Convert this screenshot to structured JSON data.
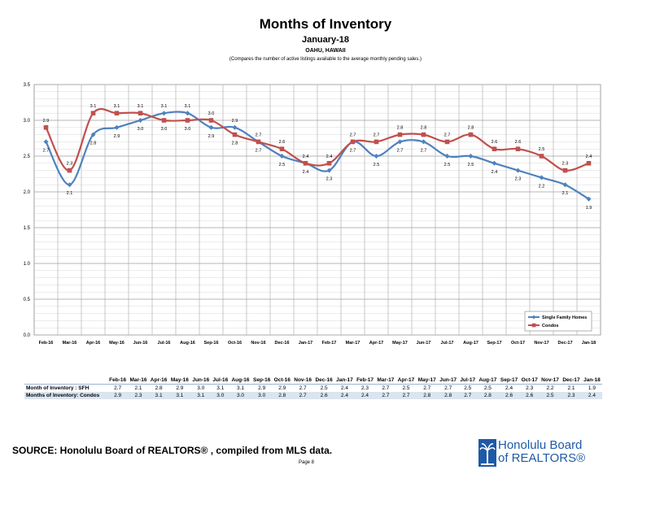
{
  "header": {
    "title": "Months of Inventory",
    "subtitle": "January-18",
    "location": "OAHU, HAWAII",
    "note": "(Compares the number of active listings available to the average monthly pending sales.)"
  },
  "colors": {
    "sfh": "#4f81bd",
    "condos": "#c0504d",
    "grid": "#a6a6a6"
  },
  "chart_data": {
    "type": "line",
    "categories": [
      "Feb-16",
      "Mar-16",
      "Apr-16",
      "May-16",
      "Jun-16",
      "Jul-16",
      "Aug-16",
      "Sep-16",
      "Oct-16",
      "Nov-16",
      "Dec-16",
      "Jan-17",
      "Feb-17",
      "Mar-17",
      "Apr-17",
      "May-17",
      "Jun-17",
      "Jul-17",
      "Aug-17",
      "Sep-17",
      "Oct-17",
      "Nov-17",
      "Dec-17",
      "Jan-18"
    ],
    "ylim": [
      0.0,
      3.5
    ],
    "yticks": [
      "0.0",
      "0.5",
      "1.0",
      "1.5",
      "2.0",
      "2.5",
      "3.0",
      "3.5"
    ],
    "grid": true,
    "legend_position": "bottom-right",
    "series": [
      {
        "name": "Single Family Homes",
        "values": [
          2.7,
          2.1,
          2.8,
          2.9,
          3.0,
          3.1,
          3.1,
          2.9,
          2.9,
          2.7,
          2.5,
          2.4,
          2.3,
          2.7,
          2.5,
          2.7,
          2.7,
          2.5,
          2.5,
          2.4,
          2.3,
          2.2,
          2.1,
          1.9
        ]
      },
      {
        "name": "Condos",
        "values": [
          2.9,
          2.3,
          3.1,
          3.1,
          3.1,
          3.0,
          3.0,
          3.0,
          2.8,
          2.7,
          2.6,
          2.4,
          2.4,
          2.7,
          2.7,
          2.8,
          2.8,
          2.7,
          2.8,
          2.6,
          2.6,
          2.5,
          2.3,
          2.4
        ]
      }
    ]
  },
  "table": {
    "rows": [
      {
        "label": "Month of Inventory : SFH",
        "values": [
          "2.7",
          "2.1",
          "2.8",
          "2.9",
          "3.0",
          "3.1",
          "3.1",
          "2.9",
          "2.9",
          "2.7",
          "2.5",
          "2.4",
          "2.3",
          "2.7",
          "2.5",
          "2.7",
          "2.7",
          "2.5",
          "2.5",
          "2.4",
          "2.3",
          "2.2",
          "2.1",
          "1.9"
        ]
      },
      {
        "label": "Months of Inventory: Condos",
        "values": [
          "2.9",
          "2.3",
          "3.1",
          "3.1",
          "3.1",
          "3.0",
          "3.0",
          "3.0",
          "2.8",
          "2.7",
          "2.6",
          "2.4",
          "2.4",
          "2.7",
          "2.7",
          "2.8",
          "2.8",
          "2.7",
          "2.8",
          "2.6",
          "2.6",
          "2.5",
          "2.3",
          "2.4"
        ]
      }
    ]
  },
  "footer": {
    "source": "SOURCE:  Honolulu Board of REALTORS® , compiled from MLS data.",
    "page": "Page 8",
    "logo_line1": "Honolulu Board",
    "logo_line2": "of REALTORS®"
  }
}
